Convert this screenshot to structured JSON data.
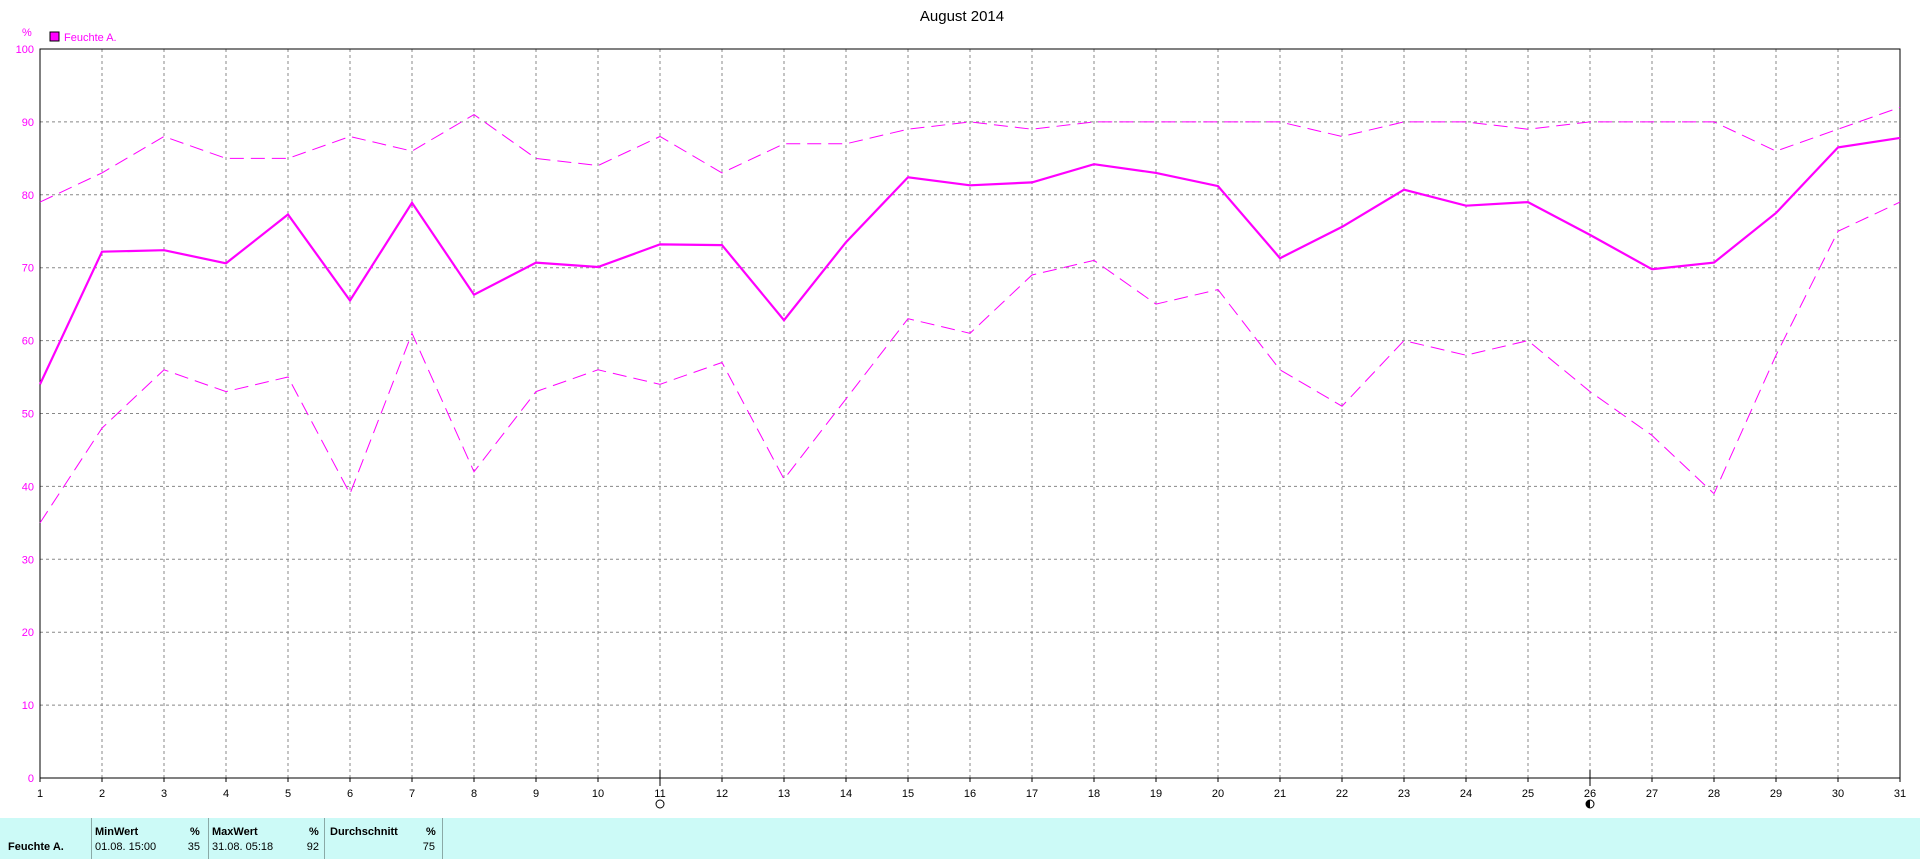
{
  "chart_data": {
    "type": "line",
    "title": "August 2014",
    "yunit": "%",
    "ylim": [
      0,
      100
    ],
    "yticks": [
      0,
      10,
      20,
      30,
      40,
      50,
      60,
      70,
      80,
      90,
      100
    ],
    "xlim": [
      1,
      31
    ],
    "x": [
      1,
      2,
      3,
      4,
      5,
      6,
      7,
      8,
      9,
      10,
      11,
      12,
      13,
      14,
      15,
      16,
      17,
      18,
      19,
      20,
      21,
      22,
      23,
      24,
      25,
      26,
      27,
      28,
      29,
      30,
      31
    ],
    "grid": true,
    "legend": {
      "position": "top-left",
      "entries": [
        "Feuchte A."
      ]
    },
    "color": "#ff00ff",
    "series": [
      {
        "name": "Feuchte A.",
        "style": "solid",
        "values": [
          54,
          72.2,
          72.4,
          70.6,
          77.3,
          65.5,
          78.9,
          66.3,
          70.7,
          70.1,
          73.2,
          73.1,
          62.8,
          73.5,
          82.4,
          81.3,
          81.7,
          84.2,
          83,
          81.2,
          71.3,
          75.6,
          80.7,
          78.5,
          79,
          74.5,
          69.8,
          70.7,
          77.5,
          86.5,
          87.8
        ]
      },
      {
        "style": "dashed",
        "values": [
          79,
          83,
          88,
          85,
          85,
          88,
          86,
          91,
          85,
          84,
          88,
          83,
          87,
          87,
          89,
          90,
          89,
          90,
          90,
          90,
          90,
          88,
          90,
          90,
          89,
          90,
          90,
          90,
          86,
          89,
          92
        ]
      },
      {
        "style": "dashed",
        "values": [
          35,
          48,
          56,
          53,
          55,
          39,
          61,
          42,
          53,
          56,
          54,
          57,
          41,
          52,
          63,
          61,
          69,
          71,
          65,
          67,
          56,
          51,
          60,
          58,
          60,
          53,
          47,
          39,
          58,
          75,
          79
        ]
      }
    ],
    "markers": [
      {
        "x": 11,
        "symbol": "moon-phase-open"
      },
      {
        "x": 26,
        "symbol": "moon-phase-half"
      }
    ]
  },
  "summary": {
    "row_label": "Feuchte A.",
    "columns": [
      {
        "header": "MinWert",
        "unit": "%",
        "time": "01.08.  15:00",
        "value": "35"
      },
      {
        "header": "MaxWert",
        "unit": "%",
        "time": "31.08.  05:18",
        "value": "92"
      },
      {
        "header": "Durchschnitt",
        "unit": "%",
        "time": "",
        "value": "75"
      }
    ]
  }
}
